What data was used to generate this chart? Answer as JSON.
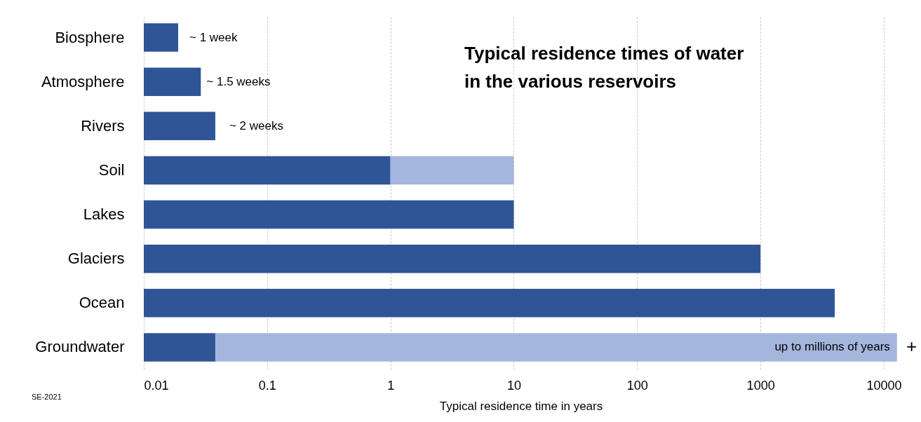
{
  "chart_data": {
    "type": "bar",
    "orientation": "horizontal",
    "stacked": true,
    "title": "Typical residence times of water in the various reservoirs",
    "xlabel": "Typical residence time in years",
    "categories": [
      "Biosphere",
      "Atmosphere",
      "Rivers",
      "Soil",
      "Lakes",
      "Glaciers",
      "Ocean",
      "Groundwater"
    ],
    "series": [
      {
        "color": "#2f5597",
        "values": [
          0.019,
          0.029,
          0.038,
          1,
          10,
          1000,
          4000,
          0.038
        ]
      },
      {
        "color": "#a4b6dc",
        "values": [
          null,
          null,
          null,
          9,
          null,
          null,
          null,
          12800
        ]
      }
    ],
    "log": "x",
    "xlim": [
      0.01,
      13000
    ],
    "xticks": [
      0.01,
      0.1,
      1,
      10,
      100,
      1000,
      10000
    ],
    "grid": "x",
    "legend": false,
    "annotations": [
      "~ 1 week",
      "~ 1.5 weeks",
      "~ 2 weeks",
      "up to millions of years",
      "+",
      "SE-2021"
    ]
  }
}
